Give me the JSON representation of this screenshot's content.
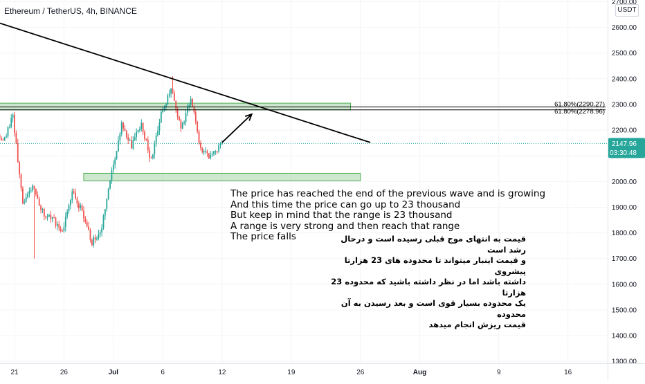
{
  "header": {
    "title": "Ethereum / TetherUS, 4h, BINANCE",
    "currency_unit": "USDT"
  },
  "colors": {
    "up": "#26a69a",
    "down": "#ef5350",
    "zone_fill": "#a5d6a7",
    "zone_border": "#4caf50",
    "trendline": "#000000",
    "current_price_line": "#26a69a",
    "current_price_badge": "#26a69a"
  },
  "chart_data": {
    "type": "candlestick",
    "title": "Ethereum / TetherUS, 4h, BINANCE",
    "y_axis": {
      "range": [
        1290,
        2710
      ],
      "ticks": [
        "2700.00",
        "2600.00",
        "2500.00",
        "2400.00",
        "2300.00",
        "2200.00",
        "2100.00",
        "2000.00",
        "1900.00",
        "1800.00",
        "1700.00",
        "1600.00",
        "1500.00",
        "1400.00",
        "1300.00"
      ],
      "tick_values": [
        2700,
        2600,
        2500,
        2400,
        2300,
        2200,
        2100,
        2000,
        1900,
        1800,
        1700,
        1600,
        1500,
        1400,
        1300
      ]
    },
    "x_axis": {
      "ticks": [
        "21",
        "26",
        "Jul",
        "6",
        "12",
        "19",
        "26",
        "Aug",
        "9",
        "16"
      ],
      "tick_dates": [
        "2021-06-21",
        "2021-06-26",
        "2021-07-01",
        "2021-07-06",
        "2021-07-12",
        "2021-07-19",
        "2021-07-26",
        "2021-08-01",
        "2021-08-09",
        "2021-08-16"
      ]
    },
    "candle_path": [
      [
        "2021-06-18",
        2230
      ],
      [
        "2021-06-19",
        2210
      ],
      [
        "2021-06-20",
        2150
      ],
      [
        "2021-06-21",
        2260
      ],
      [
        "2021-06-22",
        1910
      ],
      [
        "2021-06-23",
        1990
      ],
      [
        "2021-06-24",
        1880
      ],
      [
        "2021-06-25",
        1860
      ],
      [
        "2021-06-26",
        1800
      ],
      [
        "2021-06-27",
        1960
      ],
      [
        "2021-06-28",
        1880
      ],
      [
        "2021-06-29",
        1760
      ],
      [
        "2021-06-30",
        1820
      ],
      [
        "2021-07-01",
        2030
      ],
      [
        "2021-07-02",
        2230
      ],
      [
        "2021-07-03",
        2140
      ],
      [
        "2021-07-04",
        2220
      ],
      [
        "2021-07-05",
        2080
      ],
      [
        "2021-07-06",
        2270
      ],
      [
        "2021-07-07",
        2360
      ],
      [
        "2021-07-08",
        2200
      ],
      [
        "2021-07-09",
        2320
      ],
      [
        "2021-07-10",
        2130
      ],
      [
        "2021-07-11",
        2090
      ],
      [
        "2021-07-12",
        2148
      ]
    ],
    "candles_per_day": 6,
    "wick_extremes": {
      "high": {
        "date": "2021-07-07",
        "value": 2410
      },
      "low": {
        "date": "2021-06-23",
        "value": 1700
      }
    },
    "zones": [
      {
        "from": 2279,
        "to": 2305,
        "start": "2021-06-17",
        "end": "2021-07-25"
      },
      {
        "from": 2003,
        "to": 2032,
        "start": "2021-06-28",
        "end": "2021-07-26"
      }
    ],
    "fib_levels": [
      {
        "label": "61.80%(2290.27)",
        "value": 2290.27
      },
      {
        "label": "61.80%(2278.96)",
        "value": 2278.96
      }
    ],
    "trendline": {
      "from": [
        "2021-06-16",
        2660
      ],
      "to": [
        "2021-07-27",
        2152
      ]
    },
    "projection_arrow": {
      "from": [
        "2021-07-12",
        2152
      ],
      "to": [
        "2021-07-15",
        2262
      ]
    },
    "current_price": {
      "value": 2147.96,
      "label": "2147.96",
      "countdown": "03:30:48"
    },
    "annotations": {
      "english": [
        "The price has reached the end of the previous wave and is growing",
        "And this time the price can go up to 23 thousand",
        "But keep in mind that the range is 23 thousand",
        "A range is very strong and then reach that range",
        "The price falls"
      ],
      "persian": [
        "قیمت به انتهای موج قبلی رسیده است و درحال رشد است",
        "و قیمت اینبار میتواند تا محدوده های 23 هزارتا پیشروی",
        "داشته باشد اما در نظر داشته باشید که محدوده 23 هزارتا",
        "یک محدوده بسیار قوی است و بعد رسیدن به آن محدوده",
        "قیمت ریزش انجام میدهد"
      ]
    }
  }
}
